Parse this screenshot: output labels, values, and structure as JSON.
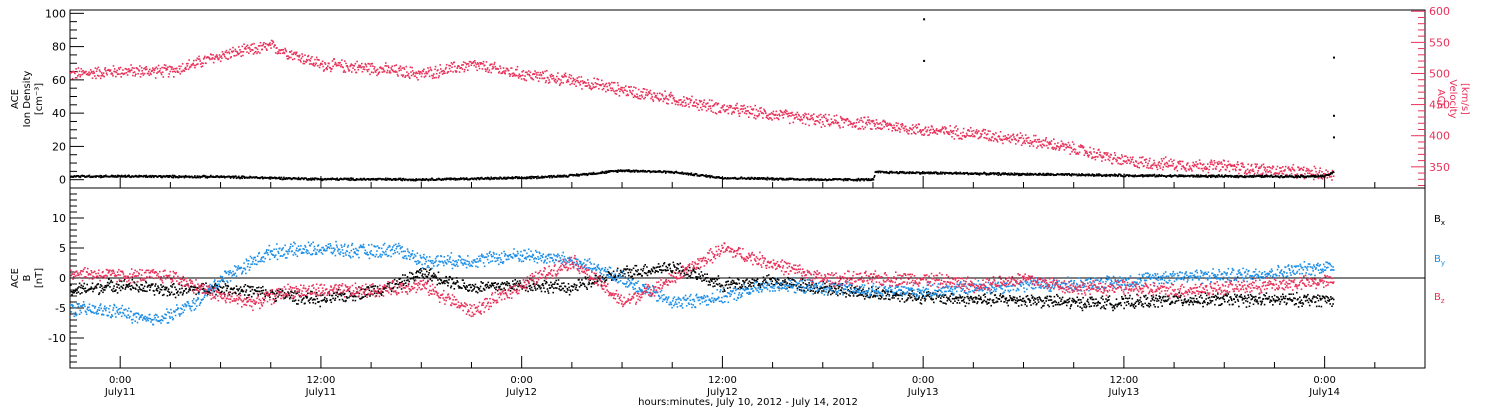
{
  "chart_data": [
    {
      "type": "scatter",
      "title": "",
      "ylabel_lines": [
        "ACE",
        "Ion Density",
        "[cm⁻³]"
      ],
      "ylim": [
        -5,
        102
      ],
      "yticks": [
        0,
        20,
        40,
        60,
        80,
        100
      ],
      "y2label_lines": [
        "ACE",
        "Velocity",
        "[km/s]"
      ],
      "y2lim": [
        316,
        602
      ],
      "y2ticks": [
        350,
        400,
        450,
        500,
        550,
        600
      ],
      "colors": {
        "density": "#000000",
        "velocity": "#e8325a"
      },
      "series": [
        {
          "name": "",
          "axis": "left",
          "color": "#000000",
          "x_hours": [
            -3,
            0,
            6,
            12,
            18,
            24,
            27,
            30,
            33,
            36,
            42,
            45,
            45.1,
            52,
            60,
            66,
            72,
            72.5
          ],
          "y": [
            2.5,
            2.5,
            2.2,
            0.8,
            0.6,
            1.5,
            3,
            6,
            5,
            1.5,
            0.5,
            0.5,
            5,
            4,
            3,
            2.5,
            2.5,
            5
          ],
          "spread": 0.8
        },
        {
          "name": "",
          "axis": "right",
          "color": "#e8325a",
          "x_hours": [
            -3,
            0,
            3,
            6,
            9,
            12,
            15,
            18,
            21,
            24,
            27,
            30,
            33,
            36,
            39,
            42,
            45,
            48,
            51,
            54,
            57,
            60,
            63,
            66,
            69,
            72,
            72.5
          ],
          "y": [
            500,
            505,
            505,
            530,
            545,
            515,
            510,
            500,
            515,
            500,
            490,
            475,
            460,
            445,
            435,
            425,
            420,
            410,
            405,
            395,
            380,
            360,
            355,
            352,
            345,
            340,
            338
          ],
          "spread": 12
        }
      ],
      "outliers": [
        {
          "x_hours": 48,
          "y": 97
        },
        {
          "x_hours": 48,
          "y": 72
        },
        {
          "x_hours": 72.5,
          "y": 74
        },
        {
          "x_hours": 72.5,
          "y": 39
        },
        {
          "x_hours": 72.5,
          "y": 26
        }
      ]
    },
    {
      "type": "scatter",
      "title": "",
      "ylabel_lines": [
        "ACE",
        "B",
        "[nT]"
      ],
      "ylim": [
        -15,
        15
      ],
      "yticks": [
        -10,
        -5,
        0,
        5,
        10
      ],
      "legend": [
        "Bx",
        "By",
        "Bz"
      ],
      "legend_position": "right",
      "zero_line": true,
      "series": [
        {
          "name": "Bx",
          "color": "#000000",
          "x_hours": [
            -3,
            0,
            3,
            6,
            9,
            12,
            15,
            16.5,
            18,
            21,
            24,
            27,
            30,
            33,
            36,
            39,
            42,
            45,
            48,
            51,
            54,
            57,
            60,
            63,
            66,
            69,
            72,
            72.5
          ],
          "y": [
            -2,
            -1,
            -2,
            -1.5,
            -2.5,
            -3.5,
            -2,
            -1,
            1,
            -1.5,
            -1,
            -1.5,
            1,
            2,
            -1,
            -0.5,
            -1.5,
            -2.5,
            -3,
            -3.5,
            -3.5,
            -4,
            -4,
            -3.5,
            -3.5,
            -3.5,
            -3.5,
            -3.5
          ],
          "spread": 1.3
        },
        {
          "name": "By",
          "color": "#1f8fe6",
          "x_hours": [
            -3,
            0,
            1.5,
            3,
            4.5,
            6,
            9,
            12,
            15,
            16.5,
            18,
            21,
            24,
            27,
            30,
            33,
            36,
            39,
            42,
            45,
            48,
            51,
            54,
            57,
            60,
            63,
            66,
            69,
            72,
            72.5
          ],
          "y": [
            -5,
            -5.5,
            -7,
            -6,
            -4,
            0,
            4.5,
            5,
            4.5,
            5,
            3,
            3,
            4,
            3,
            0,
            -4,
            -3,
            -1,
            -1.5,
            -2,
            -2,
            -1.5,
            -1,
            -1,
            -0.5,
            0.5,
            0.5,
            1,
            2,
            2
          ],
          "spread": 1.4
        },
        {
          "name": "Bz",
          "color": "#e8325a",
          "x_hours": [
            -3,
            0,
            3,
            6,
            8,
            10,
            12,
            15,
            18,
            21,
            24,
            27,
            30,
            33,
            36,
            39,
            42,
            45,
            48,
            51,
            54,
            57,
            60,
            63,
            66,
            69,
            72,
            72.5
          ],
          "y": [
            1,
            0.5,
            0.5,
            -3,
            -4,
            -2,
            -2,
            -2,
            -1,
            -5.5,
            -1,
            3,
            -4,
            0,
            5,
            2.5,
            0,
            0,
            0,
            -1,
            0,
            -1.5,
            -1.5,
            -2,
            -1.5,
            -1,
            -0.5,
            -0.5
          ],
          "spread": 1.4
        }
      ]
    }
  ],
  "x_axis": {
    "range_hours": [
      -3,
      78
    ],
    "ticks": [
      {
        "hour": 0,
        "time": "0:00",
        "date": "July11"
      },
      {
        "hour": 12,
        "time": "12:00",
        "date": "July11"
      },
      {
        "hour": 24,
        "time": "0:00",
        "date": "July12"
      },
      {
        "hour": 36,
        "time": "12:00",
        "date": "July12"
      },
      {
        "hour": 48,
        "time": "0:00",
        "date": "July13"
      },
      {
        "hour": 60,
        "time": "12:00",
        "date": "July13"
      },
      {
        "hour": 72,
        "time": "0:00",
        "date": "July14"
      }
    ],
    "label": "hours:minutes, July 10, 2012 - July 14, 2012"
  }
}
